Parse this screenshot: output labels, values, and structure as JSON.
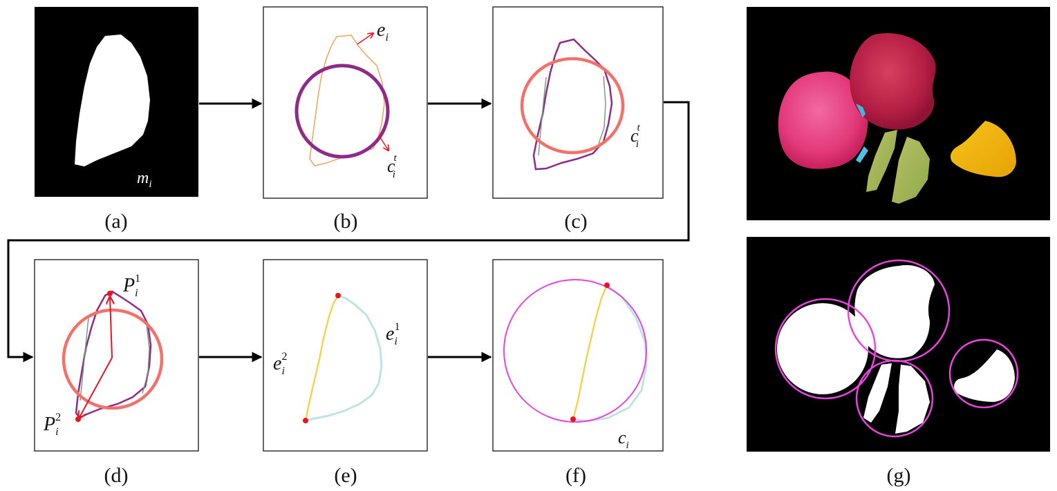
{
  "panels": {
    "a": {
      "caption": "(a)",
      "label": "m",
      "label_sub": "i"
    },
    "b": {
      "caption": "(b)",
      "label_e": "e",
      "label_e_sub": "i",
      "label_c": "c",
      "label_c_sup": "t",
      "label_c_sub": "i"
    },
    "c": {
      "caption": "(c)",
      "label_c": "c",
      "label_c_sup": "t",
      "label_c_sub": "i"
    },
    "d": {
      "caption": "(d)",
      "label_p1": "P",
      "label_p1_sup": "1",
      "label_p1_sub": "i",
      "label_p2": "P",
      "label_p2_sup": "2",
      "label_p2_sub": "i"
    },
    "e": {
      "caption": "(e)",
      "label_e1": "e",
      "label_e1_sup": "1",
      "label_e1_sub": "i",
      "label_e2": "e",
      "label_e2_sup": "2",
      "label_e2_sub": "i"
    },
    "f": {
      "caption": "(f)",
      "label_c": "c",
      "label_c_sub": "i"
    },
    "g": {
      "caption": "(g)"
    }
  },
  "colors": {
    "orange_contour": "#f0a860",
    "purple_circle": "#8e2b8a",
    "salmon_circle": "#f4716a",
    "red_marker": "#e8141e",
    "yellow_edge": "#f2d24a",
    "cyan_edge": "#bfe3e3",
    "green_inner": "#6f9a6f",
    "magenta_circle": "#ea44e0",
    "background_black": "#000000"
  }
}
